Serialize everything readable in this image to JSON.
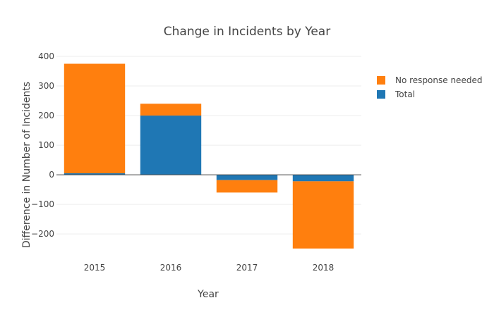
{
  "chart_data": {
    "type": "bar",
    "barmode": "relative",
    "title": "Change in Incidents by Year",
    "xlabel": "Year",
    "ylabel": "Difference in Number of Incidents",
    "categories": [
      "2015",
      "2016",
      "2017",
      "2018"
    ],
    "series": [
      {
        "name": "Total",
        "color": "#1f77b4",
        "values": [
          5,
          200,
          -18,
          -22
        ]
      },
      {
        "name": "No response needed",
        "color": "#ff7f0e",
        "values": [
          370,
          40,
          -42,
          -227
        ]
      }
    ],
    "legend_order": [
      "No response needed",
      "Total"
    ],
    "legend_position": "top-right",
    "ylim": [
      -290,
      400
    ],
    "yticks": [
      -200,
      -100,
      0,
      100,
      200,
      300,
      400
    ],
    "ytick_labels": [
      "−200",
      "−100",
      "0",
      "100",
      "200",
      "300",
      "400"
    ],
    "grid": true
  }
}
